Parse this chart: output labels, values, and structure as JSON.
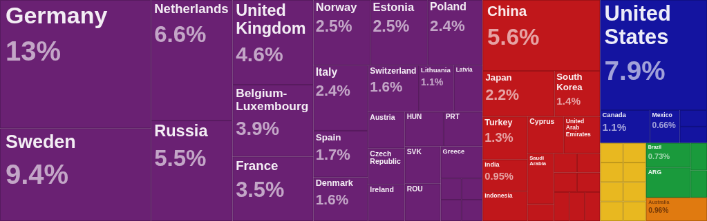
{
  "chart_data": {
    "type": "other",
    "categories": [
      "Germany",
      "Sweden",
      "Netherlands",
      "Russia",
      "United Kingdom",
      "Belgium-Luxembourg",
      "France",
      "Norway",
      "Estonia",
      "Poland",
      "Italy",
      "Spain",
      "Denmark",
      "Switzerland",
      "Lithuania",
      "Latvia",
      "Austria",
      "Czech Republic",
      "Ireland",
      "HUN",
      "PRT",
      "SVK",
      "ROU",
      "Greece",
      null,
      null,
      null,
      null,
      "China",
      "Japan",
      "South Korea",
      "Turkey",
      "India",
      "Indonesia",
      "Cyprus",
      "United Arab Emirates",
      "Saudi Arabia",
      null,
      null,
      null,
      null,
      null,
      null,
      null,
      null,
      "United States",
      "Canada",
      "Mexico",
      null,
      null,
      null,
      null,
      null,
      null,
      null,
      null,
      null,
      null,
      "Brazil",
      "ARG",
      null,
      null,
      "Australia"
    ],
    "values": [
      13,
      9.4,
      6.6,
      5.5,
      4.6,
      3.9,
      3.5,
      2.5,
      2.5,
      2.4,
      2.4,
      1.7,
      1.6,
      1.6,
      1.1,
      null,
      null,
      null,
      null,
      null,
      null,
      null,
      null,
      null,
      null,
      null,
      null,
      null,
      5.6,
      2.2,
      1.4,
      1.3,
      0.95,
      null,
      null,
      null,
      null,
      null,
      null,
      null,
      null,
      null,
      null,
      null,
      null,
      7.9,
      1.1,
      0.66,
      null,
      null,
      null,
      null,
      null,
      null,
      null,
      null,
      null,
      null,
      0.73,
      null,
      null,
      null,
      0.96
    ],
    "value_labels": [
      "13%",
      "9.4%",
      "6.6%",
      "5.5%",
      "4.6%",
      "3.9%",
      "3.5%",
      "2.5%",
      "2.5%",
      "2.4%",
      "2.4%",
      "1.7%",
      "1.6%",
      "1.6%",
      "1.1%",
      null,
      null,
      null,
      null,
      null,
      null,
      null,
      null,
      null,
      null,
      null,
      null,
      null,
      "5.6%",
      "2.2%",
      "1.4%",
      "1.3%",
      "0.95%",
      null,
      null,
      null,
      null,
      null,
      null,
      null,
      null,
      null,
      null,
      null,
      null,
      "7.9%",
      "1.1%",
      "0.66%",
      null,
      null,
      null,
      null,
      null,
      null,
      null,
      null,
      null,
      null,
      "0.73%",
      null,
      null,
      null,
      "0.96%"
    ],
    "colors": [
      "#6a2173",
      "#6a2173",
      "#6a2173",
      "#6a2173",
      "#6a2173",
      "#6a2173",
      "#6a2173",
      "#6a2173",
      "#6a2173",
      "#6a2173",
      "#6a2173",
      "#6a2173",
      "#6a2173",
      "#6a2173",
      "#6a2173",
      "#6a2173",
      "#6a2173",
      "#6a2173",
      "#6a2173",
      "#6a2173",
      "#6a2173",
      "#6a2173",
      "#6a2173",
      "#6a2173",
      "#6a2173",
      "#6a2173",
      "#6a2173",
      "#6a2173",
      "#c0171b",
      "#c0171b",
      "#c0171b",
      "#c0171b",
      "#c0171b",
      "#c0171b",
      "#c0171b",
      "#c0171b",
      "#c0171b",
      "#c0171b",
      "#c0171b",
      "#c0171b",
      "#c0171b",
      "#c0171b",
      "#c0171b",
      "#c0171b",
      "#c0171b",
      "#1414a0",
      "#1414a0",
      "#1414a0",
      "#1414a0",
      "#1414a0",
      "#e8b820",
      "#e8b820",
      "#e8b820",
      "#e8b820",
      "#e8b820",
      "#e8b820",
      "#e8b820",
      "#e8b820",
      "#1a9a3c",
      "#1a9a3c",
      "#1a9a3c",
      "#1a9a3c",
      "#e07a10"
    ]
  }
}
